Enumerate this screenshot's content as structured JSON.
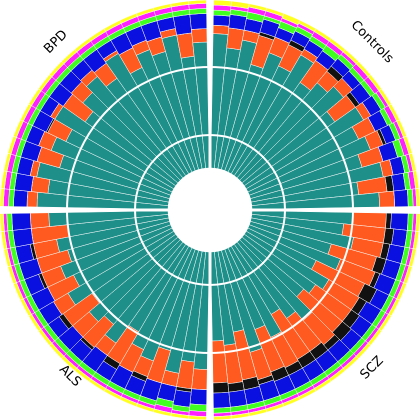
{
  "chart_data": [
    {
      "type": "bar",
      "title": "Controls",
      "categories": [
        null,
        null,
        null,
        null,
        null,
        null,
        null,
        null,
        null,
        null,
        null,
        null,
        null,
        null,
        null,
        null,
        null,
        null
      ],
      "ylim": [
        0,
        100
      ],
      "series": [
        {
          "color": "#1f8f8a",
          "values": [
            80,
            72,
            78,
            65,
            75,
            70,
            82,
            68,
            74,
            79,
            66,
            81,
            73,
            77,
            69,
            80,
            64,
            76
          ]
        },
        {
          "color": "#ff5a1f",
          "values": [
            5,
            12,
            6,
            18,
            10,
            14,
            4,
            16,
            9,
            7,
            15,
            5,
            11,
            8,
            13,
            6,
            17,
            9
          ]
        },
        {
          "color": "#111111",
          "values": [
            0,
            0,
            0,
            2,
            0,
            3,
            0,
            0,
            4,
            0,
            3,
            0,
            0,
            2,
            0,
            0,
            4,
            0
          ]
        },
        {
          "color": "#0a10e0",
          "values": [
            6,
            8,
            7,
            8,
            6,
            6,
            6,
            7,
            6,
            6,
            8,
            7,
            8,
            6,
            9,
            7,
            7,
            8
          ]
        },
        {
          "color": "#40ff20",
          "values": [
            3,
            3,
            4,
            2,
            4,
            3,
            3,
            4,
            3,
            3,
            3,
            3,
            3,
            3,
            4,
            3,
            3,
            3
          ]
        },
        {
          "color": "#ff20ff",
          "values": [
            3,
            2,
            3,
            3,
            2,
            2,
            3,
            3,
            2,
            3,
            3,
            2,
            3,
            2,
            3,
            2,
            3,
            2
          ]
        },
        {
          "color": "#ffff20",
          "values": [
            3,
            3,
            2,
            2,
            3,
            2,
            2,
            2,
            2,
            2,
            2,
            2,
            2,
            2,
            2,
            2,
            2,
            2
          ]
        }
      ]
    },
    {
      "type": "bar",
      "title": "SCZ",
      "categories": [
        null,
        null,
        null,
        null,
        null,
        null,
        null,
        null,
        null,
        null,
        null,
        null,
        null,
        null,
        null,
        null,
        null,
        null
      ],
      "ylim": [
        0,
        100
      ],
      "series": [
        {
          "color": "#1f8f8a",
          "values": [
            60,
            55,
            62,
            50,
            58,
            45,
            57,
            52,
            48,
            61,
            54,
            47,
            59,
            51,
            63,
            49,
            56,
            53
          ]
        },
        {
          "color": "#ff5a1f",
          "values": [
            20,
            25,
            18,
            28,
            22,
            32,
            21,
            26,
            30,
            19,
            24,
            31,
            20,
            27,
            17,
            29,
            23,
            25
          ]
        },
        {
          "color": "#111111",
          "values": [
            3,
            5,
            4,
            6,
            3,
            8,
            5,
            6,
            7,
            4,
            6,
            6,
            5,
            6,
            3,
            6,
            5,
            6
          ]
        },
        {
          "color": "#0a10e0",
          "values": [
            10,
            8,
            9,
            9,
            10,
            8,
            10,
            9,
            8,
            9,
            9,
            9,
            9,
            9,
            10,
            9,
            9,
            9
          ]
        },
        {
          "color": "#40ff20",
          "values": [
            3,
            3,
            3,
            3,
            3,
            3,
            3,
            3,
            3,
            3,
            3,
            3,
            3,
            3,
            3,
            3,
            3,
            3
          ]
        },
        {
          "color": "#ff20ff",
          "values": [
            2,
            2,
            2,
            2,
            2,
            2,
            2,
            2,
            2,
            2,
            2,
            2,
            2,
            2,
            2,
            2,
            2,
            2
          ]
        },
        {
          "color": "#ffff20",
          "values": [
            2,
            2,
            2,
            2,
            2,
            2,
            2,
            2,
            2,
            2,
            2,
            2,
            2,
            2,
            2,
            2,
            2,
            2
          ]
        }
      ]
    },
    {
      "type": "bar",
      "title": "ALS",
      "categories": [
        null,
        null,
        null,
        null,
        null,
        null,
        null,
        null,
        null,
        null,
        null,
        null,
        null,
        null,
        null,
        null,
        null,
        null
      ],
      "ylim": [
        0,
        100
      ],
      "series": [
        {
          "color": "#1f8f8a",
          "values": [
            70,
            66,
            74,
            62,
            71,
            67,
            59,
            72,
            64,
            69,
            61,
            73,
            65,
            70,
            63,
            68,
            60,
            71
          ]
        },
        {
          "color": "#ff5a1f",
          "values": [
            12,
            16,
            8,
            20,
            10,
            15,
            22,
            9,
            18,
            13,
            21,
            10,
            17,
            12,
            19,
            14,
            22,
            11
          ]
        },
        {
          "color": "#111111",
          "values": [
            0,
            2,
            0,
            0,
            3,
            0,
            4,
            0,
            2,
            0,
            3,
            0,
            0,
            2,
            0,
            2,
            0,
            0
          ]
        },
        {
          "color": "#0a10e0",
          "values": [
            9,
            9,
            9,
            11,
            9,
            11,
            8,
            12,
            9,
            11,
            8,
            10,
            11,
            9,
            11,
            9,
            11,
            11
          ]
        },
        {
          "color": "#40ff20",
          "values": [
            4,
            3,
            4,
            3,
            3,
            3,
            3,
            3,
            3,
            3,
            3,
            3,
            3,
            3,
            3,
            3,
            3,
            3
          ]
        },
        {
          "color": "#ff20ff",
          "values": [
            3,
            2,
            3,
            2,
            2,
            2,
            2,
            2,
            2,
            2,
            2,
            2,
            2,
            2,
            2,
            2,
            2,
            2
          ]
        },
        {
          "color": "#ffff20",
          "values": [
            2,
            2,
            2,
            2,
            2,
            2,
            2,
            2,
            2,
            2,
            2,
            2,
            2,
            2,
            2,
            2,
            2,
            2
          ]
        }
      ]
    },
    {
      "type": "bar",
      "title": "BPD",
      "categories": [
        null,
        null,
        null,
        null,
        null,
        null,
        null,
        null,
        null,
        null,
        null,
        null,
        null,
        null,
        null,
        null,
        null,
        null
      ],
      "ylim": [
        0,
        100
      ],
      "series": [
        {
          "color": "#1f8f8a",
          "values": [
            78,
            72,
            80,
            68,
            76,
            70,
            82,
            66,
            74,
            79,
            71,
            83,
            69,
            77,
            73,
            81,
            67,
            75
          ]
        },
        {
          "color": "#ff5a1f",
          "values": [
            6,
            10,
            4,
            14,
            8,
            12,
            3,
            16,
            9,
            5,
            11,
            2,
            13,
            6,
            9,
            4,
            14,
            8
          ]
        },
        {
          "color": "#111111",
          "values": [
            0,
            0,
            0,
            0,
            0,
            1,
            0,
            0,
            0,
            0,
            0,
            0,
            0,
            0,
            0,
            0,
            0,
            0
          ]
        },
        {
          "color": "#0a10e0",
          "values": [
            8,
            10,
            8,
            10,
            8,
            9,
            7,
            10,
            9,
            8,
            10,
            7,
            10,
            9,
            10,
            7,
            11,
            9
          ]
        },
        {
          "color": "#40ff20",
          "values": [
            3,
            3,
            3,
            3,
            3,
            3,
            3,
            3,
            3,
            3,
            3,
            3,
            3,
            3,
            3,
            3,
            3,
            3
          ]
        },
        {
          "color": "#ff20ff",
          "values": [
            3,
            3,
            3,
            3,
            3,
            3,
            3,
            3,
            3,
            3,
            3,
            3,
            3,
            3,
            3,
            3,
            3,
            3
          ]
        },
        {
          "color": "#ffff20",
          "values": [
            2,
            2,
            2,
            2,
            2,
            2,
            2,
            2,
            2,
            2,
            2,
            2,
            2,
            2,
            2,
            2,
            2,
            2
          ]
        }
      ]
    }
  ]
}
